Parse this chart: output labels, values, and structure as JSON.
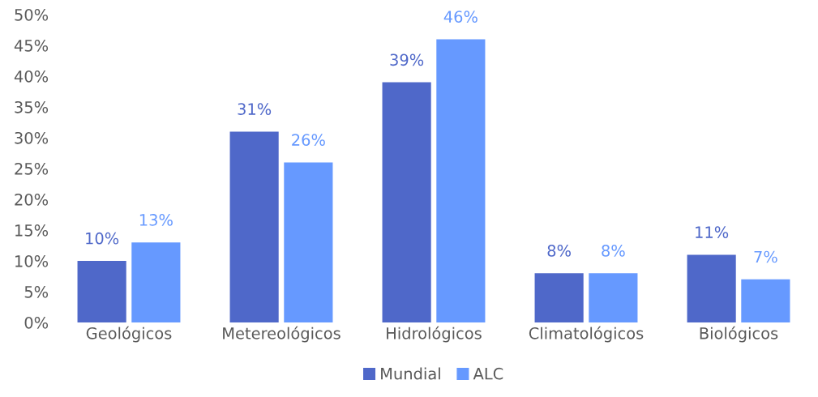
{
  "chart_data": {
    "type": "bar",
    "categories": [
      "Geológicos",
      "Metereológicos",
      "Hidrológicos",
      "Climatológicos",
      "Biológicos"
    ],
    "series": [
      {
        "name": "Mundial",
        "color": "#4f68c9",
        "values": [
          10,
          31,
          39,
          8,
          11
        ],
        "value_labels": [
          "10%",
          "31%",
          "39%",
          "8%",
          "11%"
        ]
      },
      {
        "name": "ALC",
        "color": "#6699ff",
        "values": [
          13,
          26,
          46,
          8,
          7
        ],
        "value_labels": [
          "13%",
          "26%",
          "46%",
          "8%",
          "7%"
        ]
      }
    ],
    "ylim": [
      0,
      50
    ],
    "yticks": [
      {
        "value": 0,
        "label": "0%"
      },
      {
        "value": 5,
        "label": "5%"
      },
      {
        "value": 10,
        "label": "10%"
      },
      {
        "value": 15,
        "label": "15%"
      },
      {
        "value": 20,
        "label": "20%"
      },
      {
        "value": 25,
        "label": "25%"
      },
      {
        "value": 30,
        "label": "30%"
      },
      {
        "value": 35,
        "label": "35%"
      },
      {
        "value": 40,
        "label": "40%"
      },
      {
        "value": 45,
        "label": "45%"
      },
      {
        "value": 50,
        "label": "50%"
      }
    ],
    "grid": false,
    "legend": "bottom"
  }
}
